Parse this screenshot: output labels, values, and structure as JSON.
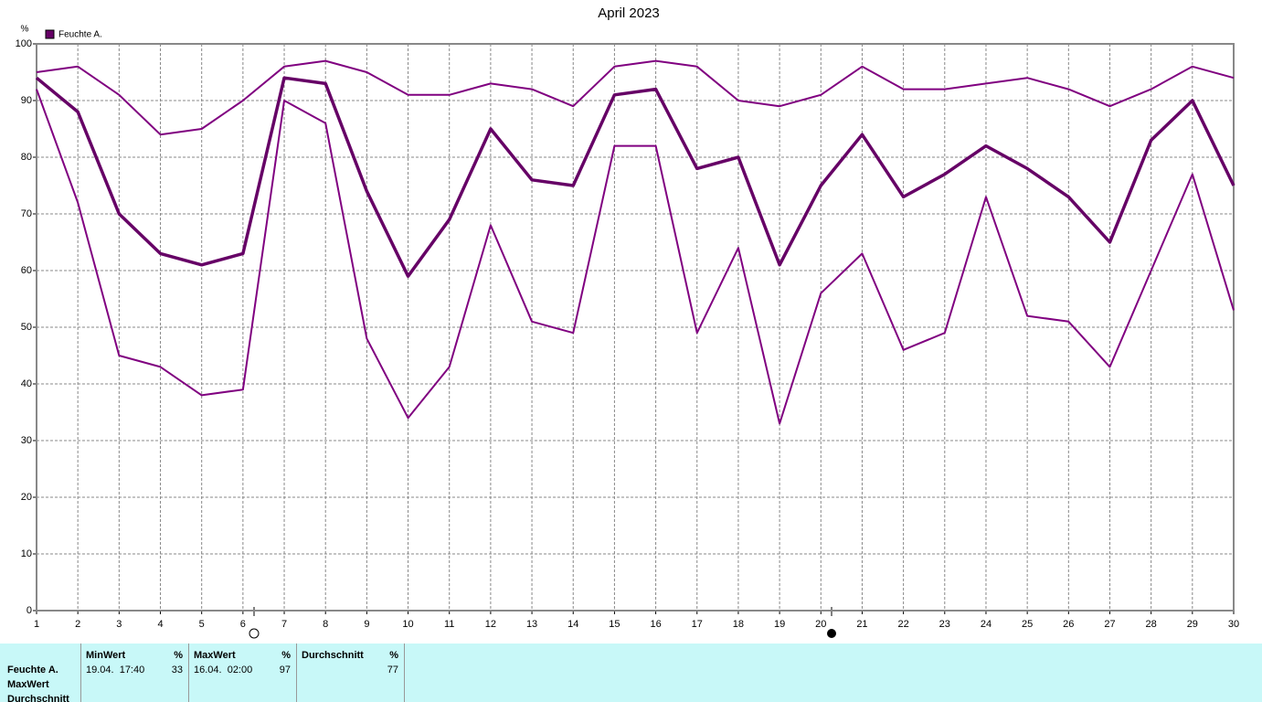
{
  "chart_data": {
    "type": "line",
    "title": "April 2023",
    "y_label": "%",
    "legend": "Feuchte A.",
    "legend_color": "#660066",
    "x": [
      1,
      2,
      3,
      4,
      5,
      6,
      7,
      8,
      9,
      10,
      11,
      12,
      13,
      14,
      15,
      16,
      17,
      18,
      19,
      20,
      21,
      22,
      23,
      24,
      25,
      26,
      27,
      28,
      29,
      30
    ],
    "xlim": [
      1,
      30
    ],
    "xticks": [
      1,
      2,
      3,
      4,
      5,
      6,
      7,
      8,
      9,
      10,
      11,
      12,
      13,
      14,
      15,
      16,
      17,
      18,
      19,
      20,
      21,
      22,
      23,
      24,
      25,
      26,
      27,
      28,
      29,
      30
    ],
    "ylim": [
      0,
      100
    ],
    "yticks": [
      0,
      10,
      20,
      30,
      40,
      50,
      60,
      70,
      80,
      90,
      100
    ],
    "grid": true,
    "series": [
      {
        "color": "#800080",
        "line_width": 2,
        "values": [
          95,
          96,
          91,
          84,
          85,
          90,
          96,
          97,
          95,
          91,
          91,
          93,
          92,
          89,
          96,
          97,
          96,
          90,
          89,
          91,
          96,
          92,
          92,
          93,
          94,
          92,
          89,
          92,
          96,
          94
        ]
      },
      {
        "color": "#660066",
        "line_width": 3.5,
        "values": [
          94,
          88,
          70,
          63,
          61,
          63,
          94,
          93,
          74,
          59,
          69,
          85,
          76,
          75,
          91,
          92,
          78,
          80,
          61,
          75,
          84,
          73,
          77,
          82,
          78,
          73,
          65,
          83,
          90,
          75
        ]
      },
      {
        "color": "#800080",
        "line_width": 2,
        "values": [
          92,
          72,
          45,
          43,
          38,
          39,
          90,
          86,
          48,
          34,
          43,
          68,
          51,
          49,
          82,
          82,
          49,
          64,
          33,
          56,
          63,
          46,
          49,
          73,
          52,
          51,
          43,
          60,
          77,
          53
        ]
      }
    ]
  },
  "table": {
    "row_labels": [
      "Feuchte A.",
      "MaxWert",
      "Durchschnitt"
    ],
    "columns": [
      {
        "header": "MinWert",
        "unit": "%",
        "time": "19.04.  17:40",
        "value": 33
      },
      {
        "header": "MaxWert",
        "unit": "%",
        "time": "16.04.  02:00",
        "value": 97
      },
      {
        "header": "Durchschnitt",
        "unit": "%",
        "value": 77
      }
    ]
  }
}
